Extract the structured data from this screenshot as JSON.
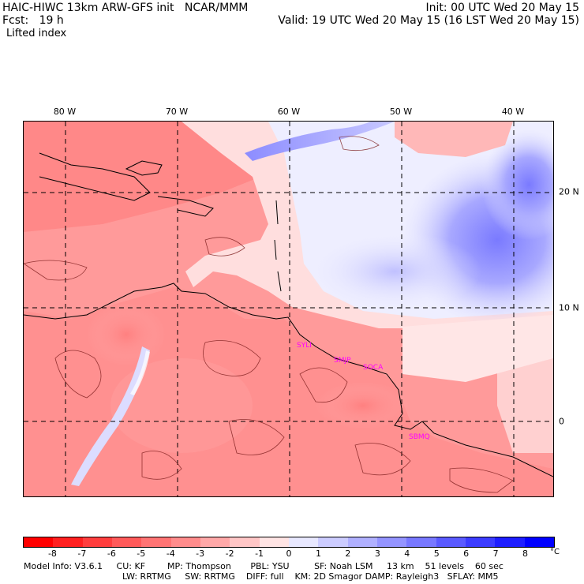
{
  "header": {
    "line1_left": "HAIC-HIWC 13km ARW-GFS init   NCAR/MMM",
    "line1_right": "Init: 00 UTC Wed 20 May 15",
    "line2_left": "Fcst:   19 h",
    "line2_right": "Valid: 19 UTC Wed 20 May 15 (16 LST Wed 20 May 15)",
    "field": "Lifted index"
  },
  "longitude_labels": [
    "80 W",
    "70 W",
    "60 W",
    "50 W",
    "40 W"
  ],
  "latitude_labels": [
    "20 N",
    "10 N",
    "0"
  ],
  "stations": [
    "SYLI",
    "SMJP",
    "SOCA",
    "SBMQ"
  ],
  "colorbar": {
    "ticks": [
      "-8",
      "-7",
      "-6",
      "-5",
      "-4",
      "-3",
      "-2",
      "-1",
      "0",
      "1",
      "2",
      "3",
      "4",
      "5",
      "6",
      "7",
      "8"
    ],
    "unit": "°C",
    "colors": [
      "#ff0000",
      "#ff2020",
      "#ff3e3e",
      "#ff5a5a",
      "#ff7474",
      "#ff8c8c",
      "#ffa8a8",
      "#ffc6c6",
      "#ffe4e4",
      "#e8e8ff",
      "#ccccff",
      "#b0b0ff",
      "#9494ff",
      "#7878ff",
      "#5a5aff",
      "#3c3cff",
      "#1e1eff",
      "#0000ff"
    ]
  },
  "footer": {
    "line1": "Model Info: V3.6.1     CU: KF        MP: Thompson       PBL: YSU         SF: Noah LSM     13 km    51 levels    60 sec",
    "line2": "LW: RRTMG     SW: RRTMG    DIFF: full    KM: 2D Smagor DAMP: Rayleigh3   SFLAY: MM5"
  }
}
